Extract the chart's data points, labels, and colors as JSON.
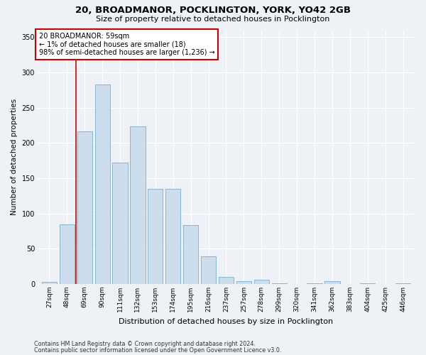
{
  "title1": "20, BROADMANOR, POCKLINGTON, YORK, YO42 2GB",
  "title2": "Size of property relative to detached houses in Pocklington",
  "xlabel": "Distribution of detached houses by size in Pocklington",
  "ylabel": "Number of detached properties",
  "footer1": "Contains HM Land Registry data © Crown copyright and database right 2024.",
  "footer2": "Contains public sector information licensed under the Open Government Licence v3.0.",
  "annotation_line1": "20 BROADMANOR: 59sqm",
  "annotation_line2": "← 1% of detached houses are smaller (18)",
  "annotation_line3": "98% of semi-detached houses are larger (1,236) →",
  "bin_labels": [
    "27sqm",
    "48sqm",
    "69sqm",
    "90sqm",
    "111sqm",
    "132sqm",
    "153sqm",
    "174sqm",
    "195sqm",
    "216sqm",
    "237sqm",
    "257sqm",
    "278sqm",
    "299sqm",
    "320sqm",
    "341sqm",
    "362sqm",
    "383sqm",
    "404sqm",
    "425sqm",
    "446sqm"
  ],
  "bar_values": [
    3,
    85,
    217,
    283,
    172,
    224,
    135,
    135,
    84,
    39,
    10,
    4,
    6,
    1,
    0,
    1,
    4,
    0,
    1,
    0,
    1
  ],
  "bar_color": "#ccdded",
  "bar_edge_color": "#7aaec8",
  "red_line_x": 1.5,
  "ylim": [
    0,
    360
  ],
  "yticks": [
    0,
    50,
    100,
    150,
    200,
    250,
    300,
    350
  ],
  "background_color": "#eef2f7",
  "plot_bg_color": "#eef2f7",
  "grid_color": "#ffffff",
  "annotation_box_color": "#ffffff",
  "annotation_box_edge": "#cc0000",
  "red_line_color": "#cc0000",
  "title1_fontsize": 9.5,
  "title2_fontsize": 8,
  "ylabel_fontsize": 7.5,
  "xlabel_fontsize": 8,
  "tick_fontsize": 6.5
}
